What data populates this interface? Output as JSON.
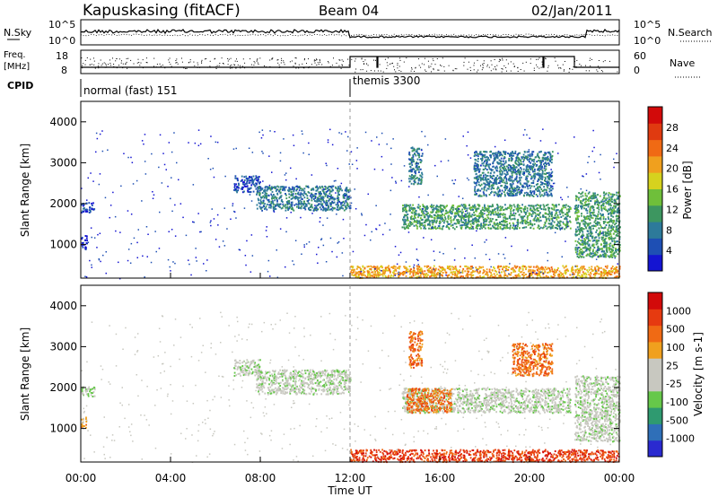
{
  "header": {
    "station": "Kapuskasing (fitACF)",
    "beam": "Beam 04",
    "date": "02/Jan/2011"
  },
  "noise_panel": {
    "left_label": "N.Sky",
    "right_label": "N.Search",
    "y_ticks_left": [
      "10^5",
      "10^0"
    ],
    "y_ticks_right": [
      "10^5",
      "10^0"
    ]
  },
  "freq_panel": {
    "left_label_1": "Freq.",
    "left_label_2": "[MHz]",
    "right_label": "Nave",
    "y_ticks_left": [
      "18",
      "8"
    ],
    "y_ticks_right": [
      "60",
      "0"
    ]
  },
  "cpid": {
    "label": "CPID",
    "modes": [
      {
        "name": "normal (fast) 151",
        "start_hour": 0,
        "end_hour": 12
      },
      {
        "name": "themis 3300",
        "start_hour": 12,
        "end_hour": 24
      }
    ]
  },
  "x_axis": {
    "label": "Time UT",
    "ticks": [
      "00:00",
      "04:00",
      "08:00",
      "12:00",
      "16:00",
      "20:00",
      "00:00"
    ],
    "tick_hours": [
      0,
      4,
      8,
      12,
      16,
      20,
      24
    ]
  },
  "y_axis": {
    "label": "Slant Range [km]",
    "ticks": [
      "1000",
      "2000",
      "3000",
      "4000"
    ],
    "tick_values": [
      1000,
      2000,
      3000,
      4000
    ],
    "range": [
      180,
      4500
    ]
  },
  "power_colorbar": {
    "label": "Power [dB]",
    "ticks": [
      "4",
      "8",
      "12",
      "16",
      "20",
      "24",
      "28"
    ],
    "colors": [
      "#1414d2",
      "#1e4fb4",
      "#2d7a9a",
      "#3d9660",
      "#6fbf3a",
      "#d6d21e",
      "#f0a01e",
      "#f06a14",
      "#e03a10",
      "#d20a0a"
    ]
  },
  "velocity_colorbar": {
    "label": "Velocity [m s-1]",
    "ticks": [
      "1000",
      "500",
      "100",
      "25",
      "-25",
      "-100",
      "-500",
      "-1000"
    ],
    "colors": [
      "#2a2ad0",
      "#2f6fb8",
      "#2f9a70",
      "#66c84a",
      "#c8c8c0",
      "#c8c8c0",
      "#f0a01e",
      "#f06a14",
      "#e63a10",
      "#d20a0a"
    ]
  },
  "chart_data": {
    "type": "heatmap",
    "title": "Kapuskasing (fitACF)",
    "xlabel": "Time UT",
    "ylabel": "Slant Range [km]",
    "xlim_hours": [
      0,
      24
    ],
    "ylim_km": [
      180,
      4500
    ],
    "scatter_bands_power": [
      {
        "t0": 0.0,
        "t1": 0.6,
        "r0": 1800,
        "r1": 2050,
        "level": 1
      },
      {
        "t0": 0.0,
        "t1": 0.25,
        "r0": 900,
        "r1": 1250,
        "level": 0
      },
      {
        "t0": 6.8,
        "t1": 8.0,
        "r0": 2300,
        "r1": 2700,
        "level": 1
      },
      {
        "t0": 7.8,
        "t1": 12.0,
        "r0": 1850,
        "r1": 2450,
        "level": 2
      },
      {
        "t0": 12.0,
        "t1": 24.0,
        "r0": 200,
        "r1": 500,
        "level": 6
      },
      {
        "t0": 14.3,
        "t1": 21.8,
        "r0": 1400,
        "r1": 2000,
        "level": 3
      },
      {
        "t0": 14.6,
        "t1": 15.2,
        "r0": 2500,
        "r1": 3400,
        "level": 2
      },
      {
        "t0": 17.5,
        "t1": 21.0,
        "r0": 2200,
        "r1": 3300,
        "level": 2
      },
      {
        "t0": 22.0,
        "t1": 24.0,
        "r0": 700,
        "r1": 2300,
        "level": 3
      }
    ],
    "scatter_bands_velocity": [
      {
        "t0": 0.0,
        "t1": 0.6,
        "r0": 1800,
        "r1": 2050,
        "level": 4
      },
      {
        "t0": 0.0,
        "t1": 0.25,
        "r0": 1000,
        "r1": 1300,
        "level": 6
      },
      {
        "t0": 6.8,
        "t1": 8.0,
        "r0": 2300,
        "r1": 2700,
        "level": 4
      },
      {
        "t0": 7.8,
        "t1": 12.0,
        "r0": 1850,
        "r1": 2450,
        "level": 4
      },
      {
        "t0": 12.0,
        "t1": 24.0,
        "r0": 200,
        "r1": 500,
        "level": 8
      },
      {
        "t0": 14.3,
        "t1": 21.8,
        "r0": 1400,
        "r1": 2000,
        "level": 4
      },
      {
        "t0": 14.5,
        "t1": 16.5,
        "r0": 1400,
        "r1": 2000,
        "level": 7
      },
      {
        "t0": 14.6,
        "t1": 15.2,
        "r0": 2500,
        "r1": 3400,
        "level": 7
      },
      {
        "t0": 19.2,
        "t1": 21.0,
        "r0": 2300,
        "r1": 3100,
        "level": 7
      },
      {
        "t0": 22.0,
        "t1": 24.0,
        "r0": 700,
        "r1": 2300,
        "level": 4
      }
    ]
  }
}
